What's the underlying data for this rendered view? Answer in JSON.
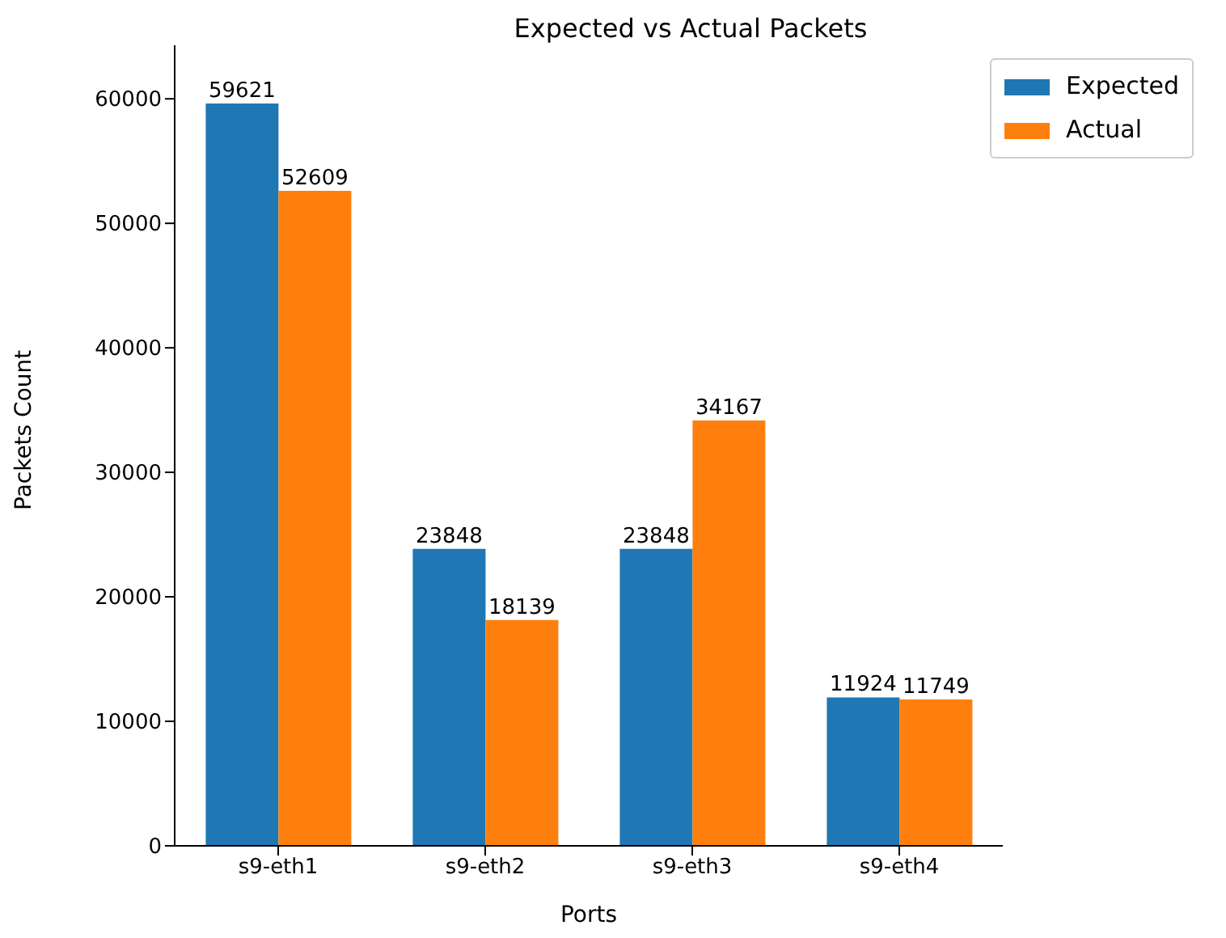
{
  "chart_data": {
    "type": "bar",
    "title": "Expected vs Actual Packets",
    "xlabel": "Ports",
    "ylabel": "Packets Count",
    "categories": [
      "s9-eth1",
      "s9-eth2",
      "s9-eth3",
      "s9-eth4"
    ],
    "series": [
      {
        "name": "Expected",
        "color": "#1f77b4",
        "values": [
          59621,
          23848,
          23848,
          11924
        ]
      },
      {
        "name": "Actual",
        "color": "#ff7f0e",
        "values": [
          52609,
          18139,
          34167,
          11749
        ]
      }
    ],
    "ylim": [
      0,
      64300
    ],
    "yticks": [
      0,
      10000,
      20000,
      30000,
      40000,
      50000,
      60000
    ],
    "data_labels": true,
    "legend": "top right",
    "grid": false
  }
}
